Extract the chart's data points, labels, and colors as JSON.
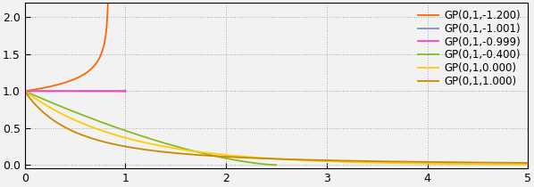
{
  "title": "",
  "xlim": [
    0,
    5
  ],
  "ylim": [
    0,
    2.2
  ],
  "xticks": [
    0,
    1,
    2,
    3,
    4,
    5
  ],
  "yticks": [
    0,
    0.5,
    1,
    1.5,
    2
  ],
  "series": [
    {
      "label": "GP(0,1,-1.200)",
      "xi": -1.2,
      "color": "#ff6600"
    },
    {
      "label": "GP(0,1,-1.001)",
      "xi": -1.001,
      "color": "#8888cc"
    },
    {
      "label": "GP(0,1,-0.999)",
      "xi": -0.999,
      "color": "#ff44bb"
    },
    {
      "label": "GP(0,1,-0.400)",
      "xi": -0.4,
      "color": "#88bb22"
    },
    {
      "label": "GP(0,1,0.000)",
      "xi": 0.0,
      "color": "#ffcc00"
    },
    {
      "label": "GP(0,1,1.000)",
      "xi": 1.0,
      "color": "#cc8800"
    }
  ],
  "mu": 0,
  "sigma": 1,
  "n_points": 3000,
  "background_color": "#f2f2f2",
  "legend_fontsize": 8.5,
  "tick_fontsize": 9,
  "linewidth": 1.3
}
